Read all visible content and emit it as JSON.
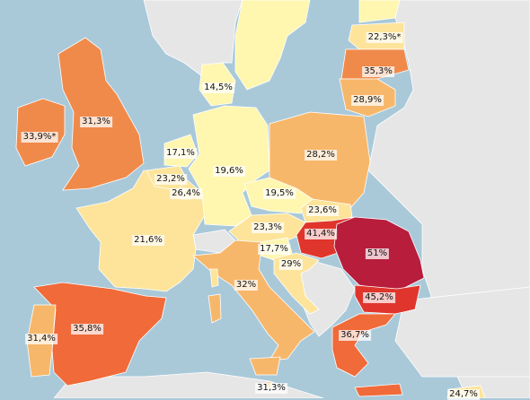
{
  "colors": {
    "sea": "#a9c9d9",
    "nodata": "#e6e6e6",
    "light": "#fff6b0",
    "pale": "#fde49a",
    "mid": "#f7b76a",
    "orange": "#f08a4b",
    "darkorange": "#f06a3a",
    "red": "#e0352c",
    "crimson": "#b81d3c"
  },
  "regions": {
    "ireland": {
      "value": "33,9%*",
      "color": "orange"
    },
    "uk": {
      "value": "31,3%",
      "color": "orange"
    },
    "france": {
      "value": "21,6%",
      "color": "pale"
    },
    "belgium": {
      "value": "23,2%",
      "color": "pale"
    },
    "netherlands": {
      "value": "17,1%",
      "color": "light"
    },
    "luxembourg": {
      "value": "26,4%",
      "color": "light"
    },
    "germany": {
      "value": "19,6%",
      "color": "light"
    },
    "denmark": {
      "value": "14,5%",
      "color": "light"
    },
    "poland": {
      "value": "28,2%",
      "color": "mid"
    },
    "czechia": {
      "value": "19,5%",
      "color": "light"
    },
    "slovakia": {
      "value": "23,6%",
      "color": "pale"
    },
    "austria": {
      "value": "23,3%",
      "color": "pale"
    },
    "slovenia": {
      "value": "17,7%",
      "color": "light"
    },
    "croatia": {
      "value": "29%",
      "color": "pale"
    },
    "hungary": {
      "value": "41,4%",
      "color": "red"
    },
    "romania": {
      "value": "51%",
      "color": "crimson"
    },
    "bulgaria": {
      "value": "45,2%",
      "color": "red"
    },
    "italy": {
      "value": "32%",
      "color": "mid"
    },
    "spain": {
      "value": "35,8%",
      "color": "darkorange"
    },
    "portugal": {
      "value": "31,4%",
      "color": "mid"
    },
    "greece": {
      "value": "36,7%",
      "color": "darkorange"
    },
    "malta": {
      "value": "31,3%",
      "color": "mid"
    },
    "estonia": {
      "value": "22,3%*",
      "color": "pale"
    },
    "latvia": {
      "value": "35,3%",
      "color": "orange"
    },
    "lithuania": {
      "value": "28,9%",
      "color": "mid"
    },
    "cyprus": {
      "value": "24,7%",
      "color": "pale"
    },
    "sweden": {
      "value": "",
      "color": "light"
    },
    "finland": {
      "value": "",
      "color": "light"
    }
  }
}
